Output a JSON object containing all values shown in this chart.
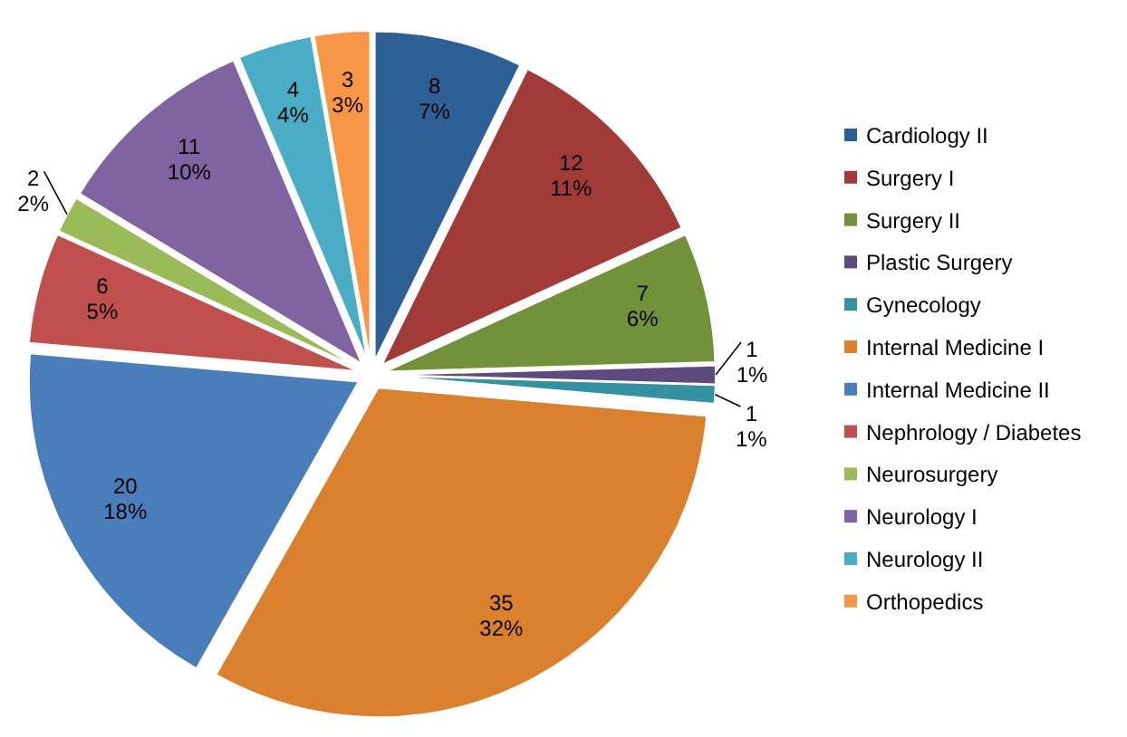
{
  "chart_data": {
    "type": "pie",
    "categories": [
      "Cardiology II",
      "Surgery I",
      "Surgery II",
      "Plastic Surgery",
      "Gynecology",
      "Internal Medicine I",
      "Internal Medicine II",
      "Nephrology / Diabetes",
      "Neurosurgery",
      "Neurology I",
      "Neurology II",
      "Orthopedics"
    ],
    "values": [
      8,
      12,
      7,
      1,
      1,
      35,
      20,
      6,
      2,
      11,
      4,
      3
    ],
    "value_labels": [
      "8\n7%",
      "12\n11%",
      "7\n6%",
      "1\n1%",
      "1\n1%",
      "35\n32%",
      "20\n18%",
      "6\n5%",
      "2\n2%",
      "11\n10%",
      "4\n4%",
      "3\n3%"
    ],
    "colors": [
      "#2e5f95",
      "#a13b38",
      "#71913b",
      "#5e4a7d",
      "#35909f",
      "#d9812f",
      "#4a7ebb",
      "#c0504d",
      "#9bbb59",
      "#8064a2",
      "#4bacc6",
      "#f79646"
    ],
    "legend": "right"
  }
}
